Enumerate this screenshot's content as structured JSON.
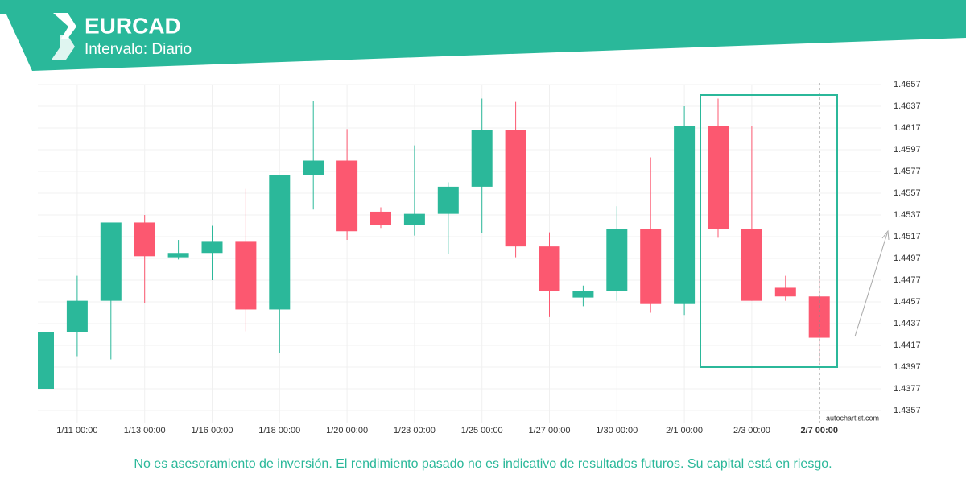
{
  "header": {
    "title": "EURCAD",
    "subtitle": "Intervalo: Diario"
  },
  "chart_data": {
    "type": "candlestick",
    "categories": [
      null,
      "1/11 00:00",
      null,
      "1/13 00:00",
      null,
      "1/16 00:00",
      null,
      "1/18 00:00",
      null,
      "1/20 00:00",
      null,
      "1/23 00:00",
      null,
      "1/25 00:00",
      null,
      "1/27 00:00",
      null,
      "1/30 00:00",
      null,
      "2/1 00:00",
      null,
      "2/3 00:00",
      null,
      "2/7 00:00"
    ],
    "open": [
      1.4377,
      1.4429,
      1.4458,
      1.453,
      1.4498,
      1.4502,
      1.4513,
      1.445,
      1.4574,
      1.4587,
      1.454,
      1.4528,
      1.4538,
      1.4563,
      1.4615,
      1.4508,
      1.4461,
      1.4467,
      1.4524,
      1.4455,
      1.4619,
      1.4524,
      1.447,
      1.4462
    ],
    "high": [
      1.4429,
      1.4481,
      1.453,
      1.4537,
      1.4514,
      1.4527,
      1.4561,
      1.4574,
      1.4642,
      1.4616,
      1.4544,
      1.4601,
      1.4567,
      1.4644,
      1.4641,
      1.4521,
      1.4472,
      1.4545,
      1.459,
      1.4637,
      1.4644,
      1.4619,
      1.4481,
      1.4481
    ],
    "low": [
      1.4377,
      1.4407,
      1.4404,
      1.4456,
      1.4496,
      1.4477,
      1.443,
      1.441,
      1.4542,
      1.4514,
      1.4525,
      1.4518,
      1.4501,
      1.452,
      1.4498,
      1.4443,
      1.4453,
      1.4458,
      1.4447,
      1.4445,
      1.4516,
      1.4458,
      1.4458,
      1.4399
    ],
    "close": [
      1.4429,
      1.4458,
      1.453,
      1.4499,
      1.4502,
      1.4513,
      1.445,
      1.4574,
      1.4587,
      1.4522,
      1.4528,
      1.4538,
      1.4563,
      1.4615,
      1.4508,
      1.4467,
      1.4467,
      1.4524,
      1.4455,
      1.4619,
      1.4524,
      1.4458,
      1.4462,
      1.4424
    ],
    "up_color": "#2bb89a",
    "down_color": "#fc5870",
    "ylim": [
      1.4357,
      1.4657
    ],
    "yticks": [
      1.4357,
      1.4377,
      1.4397,
      1.4417,
      1.4437,
      1.4457,
      1.4477,
      1.4497,
      1.4517,
      1.4537,
      1.4557,
      1.4577,
      1.4597,
      1.4617,
      1.4637,
      1.4657
    ],
    "grid": true
  },
  "watermark": "autochartist.com",
  "footer": "No es asesoramiento de inversión. El rendimiento pasado no es indicativo de resultados futuros. Su capital está en riesgo."
}
